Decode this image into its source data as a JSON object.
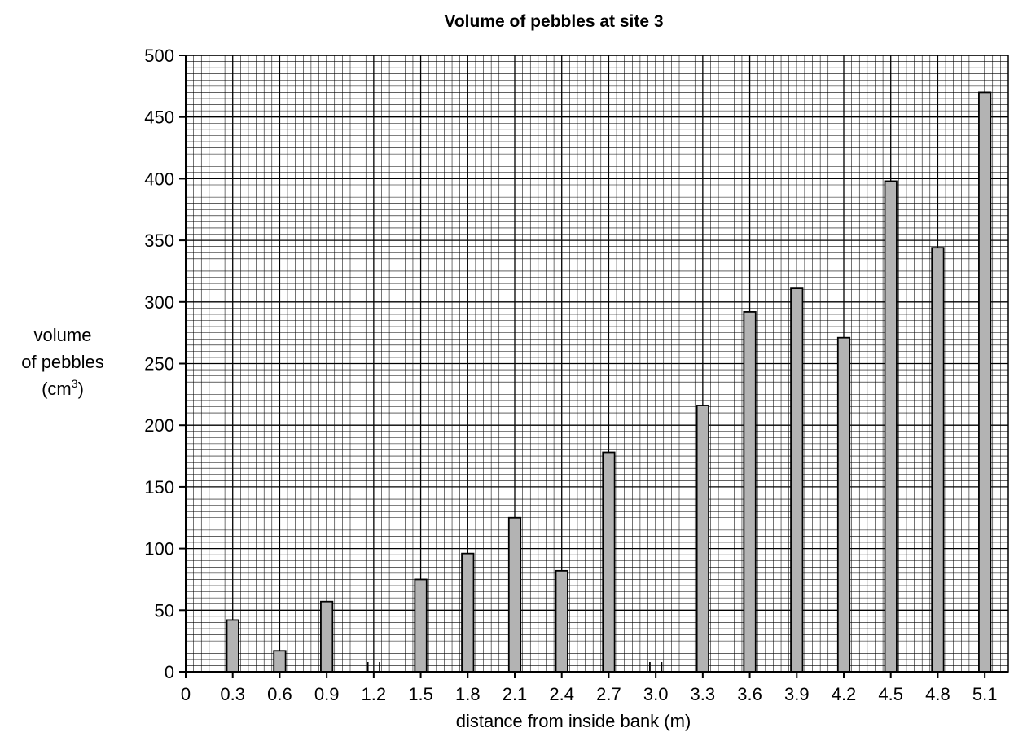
{
  "chart_data": {
    "type": "bar",
    "title": "Volume of pebbles at site 3",
    "xlabel": "distance from inside bank (m)",
    "ylabel": {
      "line1": "volume",
      "line2": "of pebbles",
      "line3_prefix": "(cm",
      "line3_sup": "3",
      "line3_suffix": ")"
    },
    "x_origin_label": "0",
    "categories": [
      "0.3",
      "0.6",
      "0.9",
      "1.2",
      "1.5",
      "1.8",
      "2.1",
      "2.4",
      "2.7",
      "3.0",
      "3.3",
      "3.6",
      "3.9",
      "4.2",
      "4.5",
      "4.8",
      "5.1"
    ],
    "values": [
      42,
      17,
      57,
      0,
      75,
      96,
      125,
      82,
      178,
      0,
      216,
      292,
      311,
      271,
      398,
      344,
      470
    ],
    "yticks": [
      "0",
      "50",
      "100",
      "150",
      "200",
      "250",
      "300",
      "350",
      "400",
      "450",
      "500"
    ],
    "ylim": [
      0,
      500
    ],
    "xlim": [
      0,
      5.25
    ],
    "grid": true,
    "bar_color": "#b3b3b3"
  }
}
